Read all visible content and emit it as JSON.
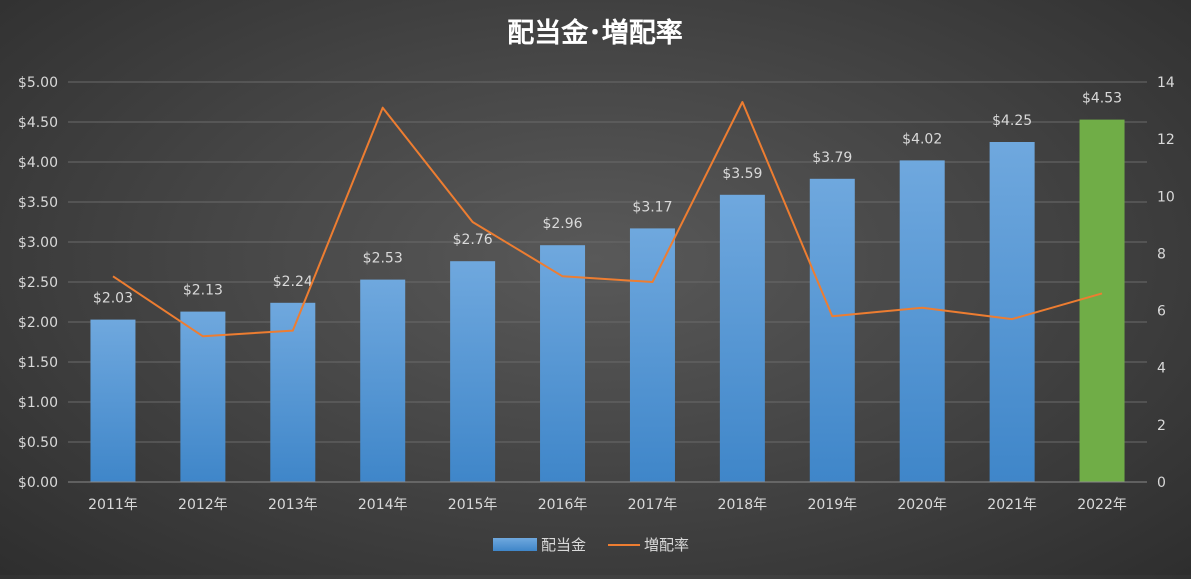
{
  "chart_data": {
    "type": "bar",
    "title": "配当金･増配率",
    "categories": [
      "2011年",
      "2012年",
      "2013年",
      "2014年",
      "2015年",
      "2016年",
      "2017年",
      "2018年",
      "2019年",
      "2020年",
      "2021年",
      "2022年"
    ],
    "series": [
      {
        "name": "配当金",
        "type": "bar",
        "axis": "left",
        "values": [
          2.03,
          2.13,
          2.24,
          2.53,
          2.76,
          2.96,
          3.17,
          3.59,
          3.79,
          4.02,
          4.25,
          4.53
        ],
        "labels": [
          "$2.03",
          "$2.13",
          "$2.24",
          "$2.53",
          "$2.76",
          "$2.96",
          "$3.17",
          "$3.59",
          "$3.79",
          "$4.02",
          "$4.25",
          "$4.53"
        ],
        "color": "#5b9bd5",
        "highlight_index": 11,
        "highlight_color": "#70ad47"
      },
      {
        "name": "増配率",
        "type": "line",
        "axis": "right",
        "values": [
          7.2,
          5.1,
          5.3,
          13.1,
          9.1,
          7.2,
          7.0,
          13.3,
          5.8,
          6.1,
          5.7,
          6.6
        ],
        "color": "#ed7d31"
      }
    ],
    "y_left": {
      "ylim": [
        0,
        5
      ],
      "ticks": [
        "$0.00",
        "$0.50",
        "$1.00",
        "$1.50",
        "$2.00",
        "$2.50",
        "$3.00",
        "$3.50",
        "$4.00",
        "$4.50",
        "$5.00"
      ]
    },
    "y_right": {
      "ylim": [
        0,
        14
      ],
      "ticks": [
        "0",
        "2",
        "4",
        "6",
        "8",
        "10",
        "12",
        "14"
      ]
    },
    "grid": true,
    "legend": "bottom",
    "colors": {
      "title": "#ffffff",
      "text": "#d9d9d9",
      "grid": "#6a6a6a"
    }
  }
}
